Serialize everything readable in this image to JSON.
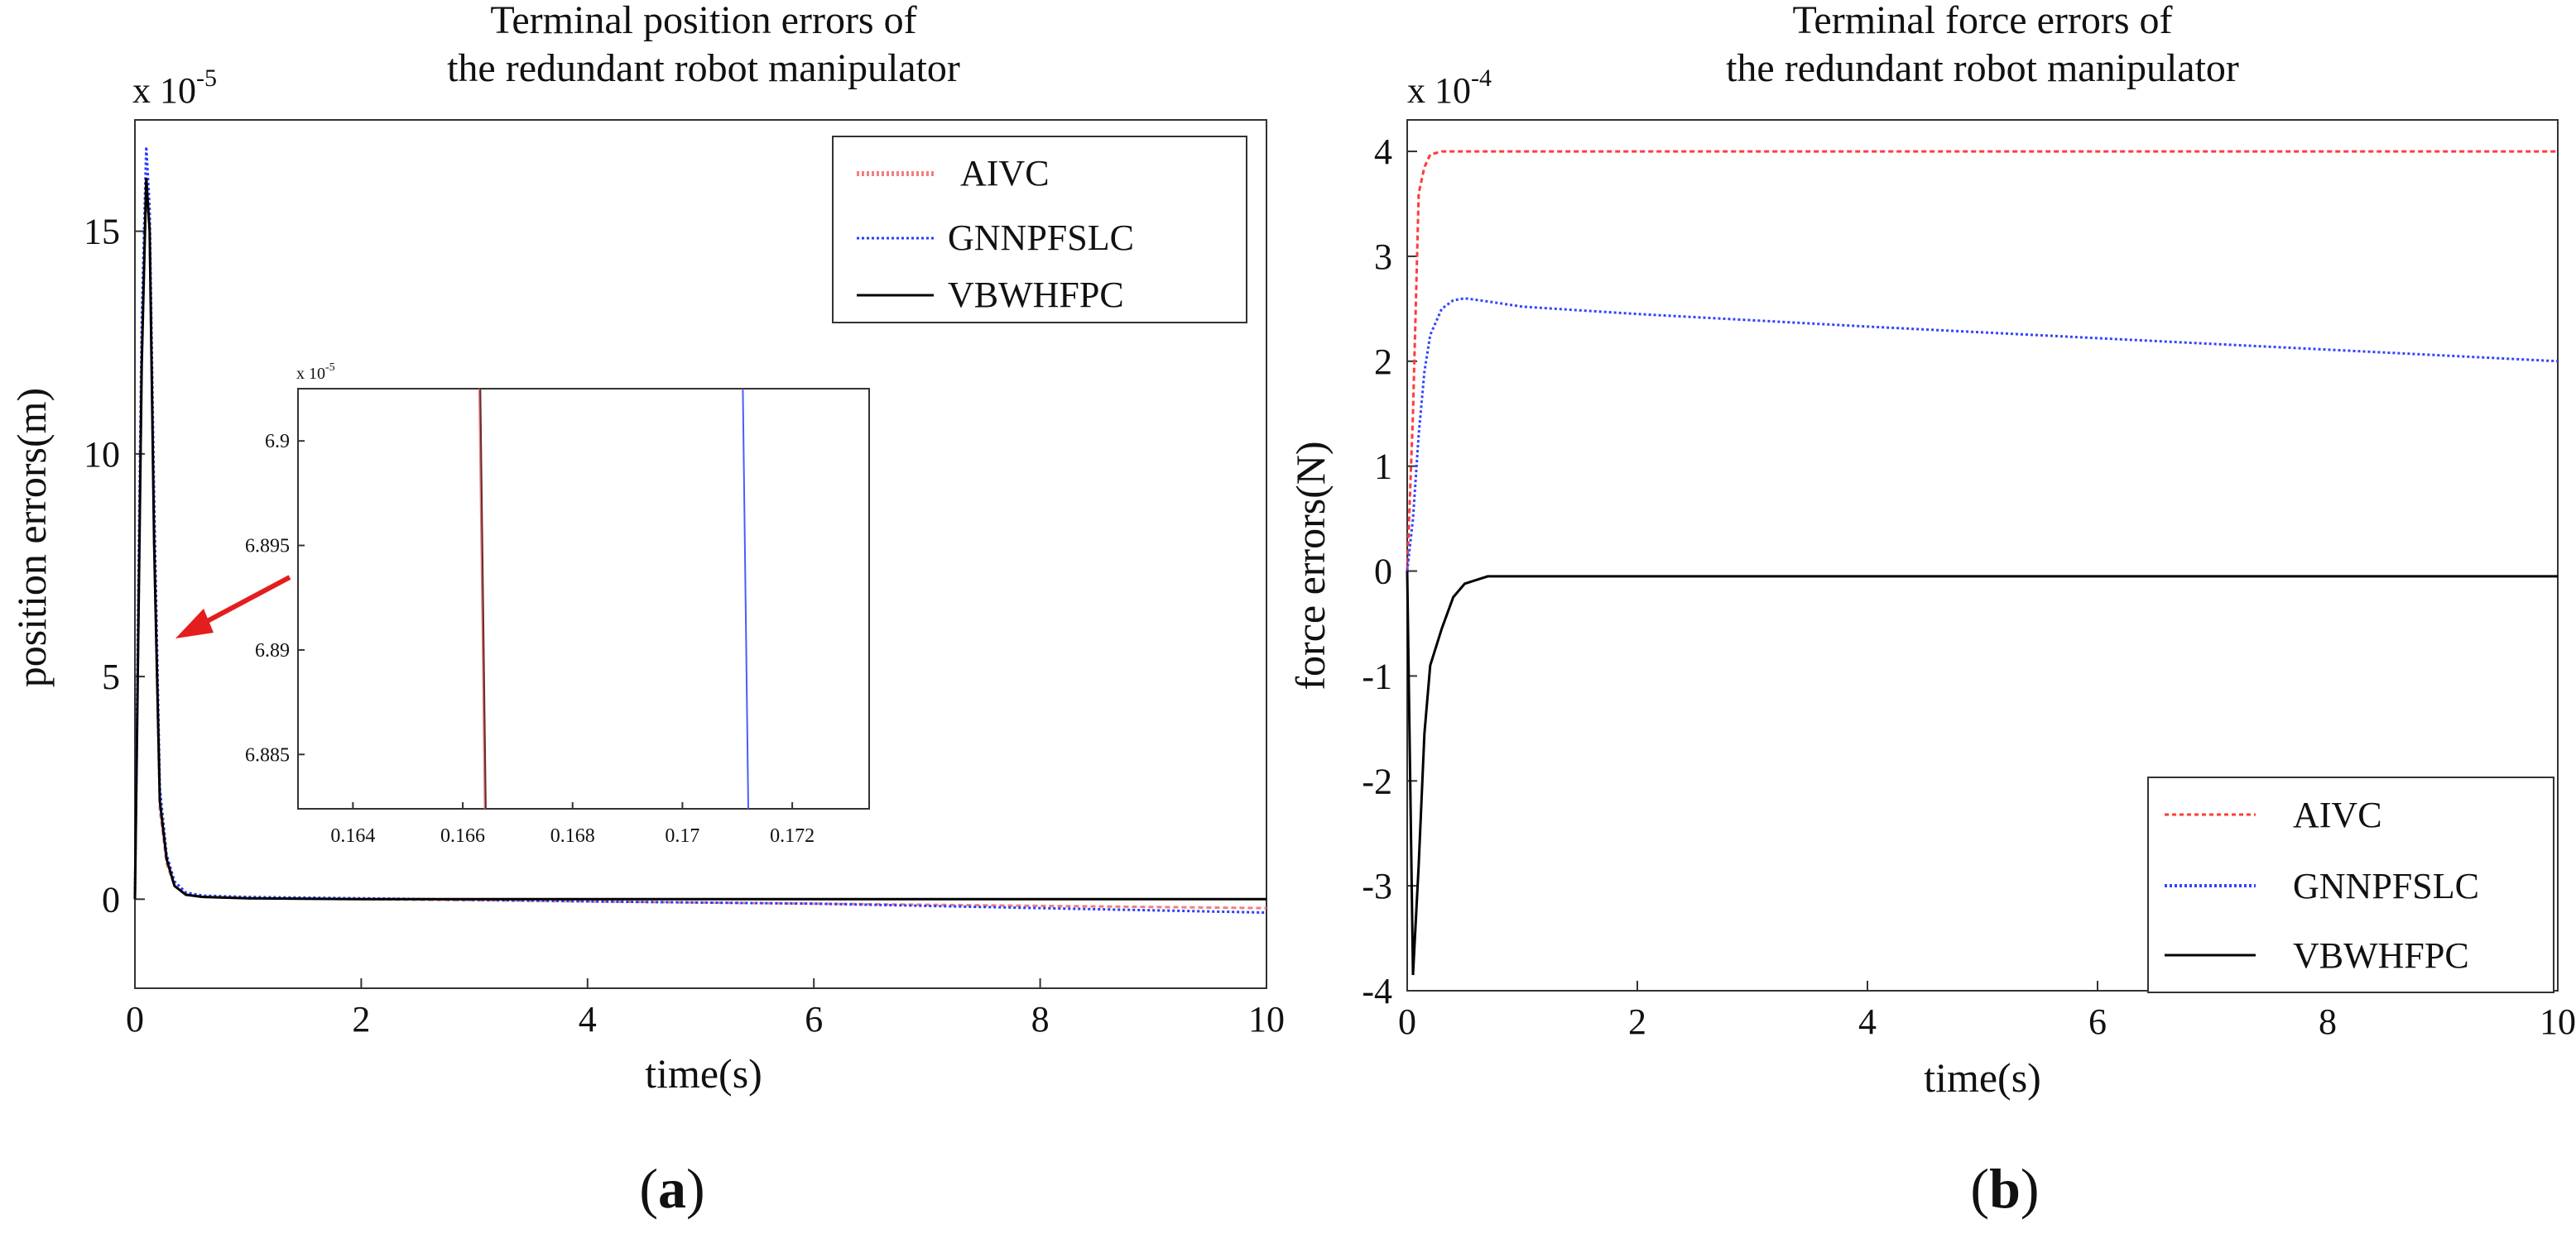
{
  "chart_data": [
    {
      "panel": "a",
      "type": "line",
      "title_lines": [
        "Terminal position errors of",
        "the redundant robot manipulator"
      ],
      "xlabel": "time(s)",
      "ylabel": "position errors(m)",
      "y_exponent_prefix": "x 10",
      "y_exponent_power": "-5",
      "xlim": [
        0,
        10
      ],
      "ylim": [
        -2,
        17.5
      ],
      "xticks": [
        "0",
        "2",
        "4",
        "6",
        "8",
        "10"
      ],
      "yticks": [
        "0",
        "5",
        "10",
        "15"
      ],
      "legend_position": "top-right",
      "series": [
        {
          "name": "AIVC",
          "color": "#f08080",
          "style": "dashed",
          "x": [
            0,
            0.03,
            0.06,
            0.1,
            0.13,
            0.17,
            0.22,
            0.28,
            0.35,
            0.45,
            0.6,
            1,
            2,
            4,
            6,
            8,
            10
          ],
          "y": [
            0,
            6,
            12,
            16,
            15,
            8,
            2,
            0.8,
            0.3,
            0.1,
            0.05,
            0.02,
            0.0,
            -0.05,
            -0.1,
            -0.15,
            -0.2
          ]
        },
        {
          "name": "GNNPFSLC",
          "color": "#2a3cff",
          "style": "dotted",
          "x": [
            0,
            0.03,
            0.06,
            0.1,
            0.13,
            0.17,
            0.22,
            0.28,
            0.35,
            0.45,
            0.6,
            1,
            2,
            4,
            6,
            8,
            10
          ],
          "y": [
            0,
            7,
            13,
            16.9,
            15.5,
            9,
            2.5,
            1,
            0.4,
            0.15,
            0.08,
            0.05,
            0.02,
            -0.05,
            -0.1,
            -0.2,
            -0.3
          ]
        },
        {
          "name": "VBWHFPC",
          "color": "#000000",
          "style": "solid",
          "x": [
            0,
            0.03,
            0.06,
            0.1,
            0.13,
            0.17,
            0.22,
            0.28,
            0.35,
            0.45,
            0.6,
            1,
            2,
            4,
            6,
            8,
            10
          ],
          "y": [
            0,
            6,
            12,
            16.2,
            15,
            8,
            2.2,
            0.9,
            0.3,
            0.1,
            0.05,
            0.02,
            0.0,
            0.0,
            0.0,
            0.0,
            0.0
          ]
        }
      ],
      "inset": {
        "y_exponent_prefix": "x 10",
        "y_exponent_power": "-5",
        "xlim": [
          0.163,
          0.1734
        ],
        "ylim": [
          6.8824,
          6.9025
        ],
        "xticks": [
          "0.164",
          "0.166",
          "0.168",
          "0.17",
          "0.172"
        ],
        "yticks": [
          "6.885",
          "6.89",
          "6.895",
          "6.9"
        ],
        "series": [
          {
            "name": "AIVC",
            "color": "#e08080",
            "style": "solid",
            "x": [
              0.1663,
              0.1664
            ],
            "y": [
              6.9025,
              6.8824
            ]
          },
          {
            "name": "VBWHFPC",
            "color": "#6b2a2a",
            "style": "solid",
            "x": [
              0.16632,
              0.16642
            ],
            "y": [
              6.9025,
              6.8824
            ]
          },
          {
            "name": "GNNPFSLC",
            "color": "#4a5cff",
            "style": "solid",
            "x": [
              0.1711,
              0.1712
            ],
            "y": [
              6.9025,
              6.8824
            ]
          }
        ]
      }
    },
    {
      "panel": "b",
      "type": "line",
      "title_lines": [
        "Terminal force errors of",
        "the redundant robot manipulator"
      ],
      "xlabel": "time(s)",
      "ylabel": "force errors(N)",
      "y_exponent_prefix": "x 10",
      "y_exponent_power": "-4",
      "xlim": [
        0,
        10
      ],
      "ylim": [
        -4,
        4.3
      ],
      "xticks": [
        "0",
        "2",
        "4",
        "6",
        "8",
        "10"
      ],
      "yticks": [
        "-4",
        "-3",
        "-2",
        "-1",
        "0",
        "1",
        "2",
        "3",
        "4"
      ],
      "legend_position": "bottom-right",
      "series": [
        {
          "name": "AIVC",
          "color": "#ff3b3b",
          "style": "dashed",
          "x": [
            0,
            0.05,
            0.1,
            0.15,
            0.2,
            0.3,
            0.5,
            1,
            10
          ],
          "y": [
            0,
            1.5,
            3.6,
            3.85,
            3.97,
            4,
            4,
            4,
            4
          ]
        },
        {
          "name": "GNNPFSLC",
          "color": "#3344ff",
          "style": "dotted",
          "x": [
            0,
            0.05,
            0.1,
            0.15,
            0.2,
            0.3,
            0.4,
            0.5,
            0.7,
            1,
            2,
            4,
            6,
            8,
            10
          ],
          "y": [
            0,
            0.5,
            1.3,
            1.9,
            2.25,
            2.5,
            2.58,
            2.6,
            2.57,
            2.52,
            2.45,
            2.33,
            2.22,
            2.11,
            2.0
          ]
        },
        {
          "name": "VBWHFPC",
          "color": "#000000",
          "style": "solid",
          "x": [
            0,
            0.05,
            0.1,
            0.15,
            0.2,
            0.3,
            0.4,
            0.5,
            0.7,
            1,
            10
          ],
          "y": [
            0,
            -3.85,
            -2.8,
            -1.55,
            -0.9,
            -0.55,
            -0.25,
            -0.12,
            -0.05,
            -0.05,
            -0.05
          ]
        }
      ]
    }
  ],
  "captions": {
    "a": "(a)",
    "b": "(b)"
  }
}
